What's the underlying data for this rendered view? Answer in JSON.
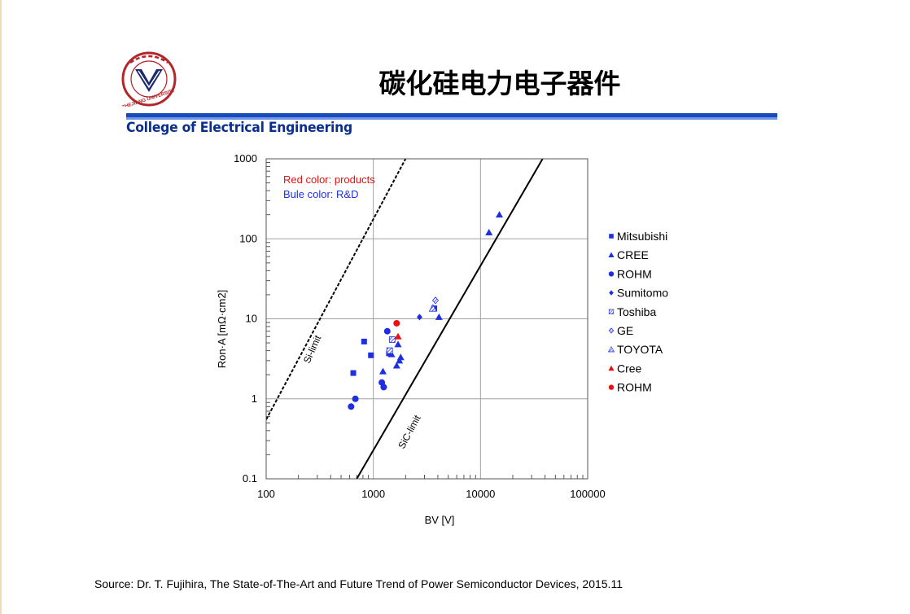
{
  "header": {
    "title": "碳化硅电力电子器件",
    "college": "College of Electrical Engineering",
    "logo_text": "ZHEJIANG UNIVERSITY",
    "colors": {
      "title_bar": "#1a49b8",
      "college_text": "#0b2f8e"
    }
  },
  "footer": {
    "source": "Source: Dr. T. Fujihira, The State-of-The-Art and Future Trend of Power Semiconductor Devices, 2015.11"
  },
  "chart_data": {
    "type": "scatter",
    "xlabel": "BV [V]",
    "ylabel": "Ron·A [mΩ·cm2]",
    "xscale": "log",
    "yscale": "log",
    "xlim": [
      100,
      100000
    ],
    "ylim": [
      0.1,
      1000
    ],
    "x_ticks": [
      "100",
      "1000",
      "10000",
      "100000"
    ],
    "y_ticks": [
      "0.1",
      "1",
      "10",
      "100",
      "1000"
    ],
    "grid": true,
    "legend_position": "right",
    "annotations": {
      "red_note": "Red color: products",
      "blue_note": "Bule color: R&D",
      "si_limit": "Si-limit",
      "sic_limit": "SiC-limit"
    },
    "limit_lines": [
      {
        "name": "Si-limit",
        "style": "dashed",
        "points": [
          [
            100,
            0.55
          ],
          [
            2000,
            1000
          ]
        ]
      },
      {
        "name": "SiC-limit",
        "style": "solid",
        "points": [
          [
            700,
            0.1
          ],
          [
            38000,
            1000
          ]
        ]
      }
    ],
    "series": [
      {
        "name": "Mitsubishi",
        "marker": "square",
        "color": "#1f2fe0",
        "points": [
          [
            650,
            2.1
          ],
          [
            820,
            5.2
          ],
          [
            950,
            3.5
          ],
          [
            1400,
            3.7
          ],
          [
            3700,
            13.5
          ]
        ]
      },
      {
        "name": "CREE",
        "marker": "triangle",
        "color": "#1f2fe0",
        "points": [
          [
            1230,
            2.2
          ],
          [
            1480,
            3.6
          ],
          [
            1650,
            2.6
          ],
          [
            1700,
            4.8
          ],
          [
            1750,
            3.0
          ],
          [
            1800,
            3.3
          ],
          [
            12000,
            120
          ],
          [
            15000,
            200
          ],
          [
            4100,
            10.5
          ]
        ]
      },
      {
        "name": "ROHM",
        "marker": "circle",
        "color": "#1f2fe0",
        "points": [
          [
            620,
            0.8
          ],
          [
            680,
            1.0
          ],
          [
            1200,
            1.6
          ],
          [
            1250,
            1.4
          ],
          [
            1350,
            7.0
          ]
        ]
      },
      {
        "name": "Sumitomo",
        "marker": "diamond",
        "color": "#1f2fe0",
        "points": [
          [
            2700,
            10.5
          ]
        ]
      },
      {
        "name": "Toshiba",
        "marker": "hatched-square",
        "color": "#1f2fe0",
        "points": [
          [
            1420,
            4.0
          ],
          [
            1500,
            5.5
          ]
        ]
      },
      {
        "name": "GE",
        "marker": "hatched-diamond",
        "color": "#1f2fe0",
        "points": [
          [
            3800,
            17
          ]
        ]
      },
      {
        "name": "TOYOTA",
        "marker": "hatched-triangle",
        "color": "#1f2fe0",
        "points": [
          [
            3600,
            13.5
          ]
        ]
      },
      {
        "name": "Cree",
        "marker": "triangle",
        "color": "#e81010",
        "points": [
          [
            1700,
            6.0
          ]
        ]
      },
      {
        "name": "ROHM",
        "marker": "circle",
        "color": "#e81010",
        "points": [
          [
            1650,
            8.8
          ]
        ]
      }
    ]
  }
}
